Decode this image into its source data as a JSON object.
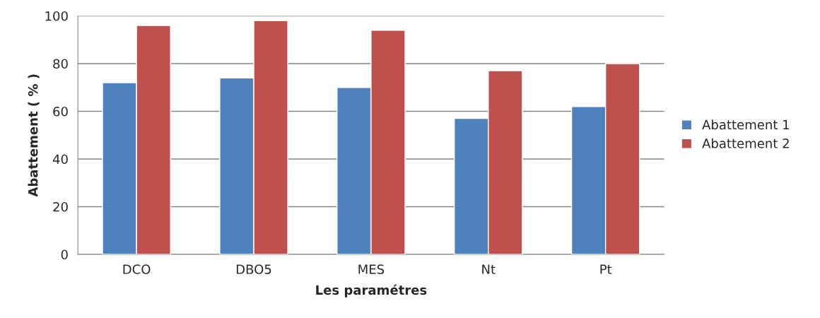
{
  "chart_data": {
    "type": "bar",
    "xlabel": "Les paramétres",
    "ylabel": "Abattement ( % )",
    "categories": [
      "DCO",
      "DBO5",
      "MES",
      "Nt",
      "Pt"
    ],
    "series": [
      {
        "name": "Abattement 1",
        "color": "#4f81bd",
        "values": [
          72,
          74,
          70,
          57,
          62
        ]
      },
      {
        "name": "Abattement 2",
        "color": "#c0504d",
        "values": [
          96,
          98,
          94,
          77,
          80
        ]
      }
    ],
    "ylim": [
      0,
      100
    ],
    "yticks": [
      0,
      20,
      40,
      60,
      80,
      100
    ],
    "grid": "y",
    "legend": "right"
  }
}
